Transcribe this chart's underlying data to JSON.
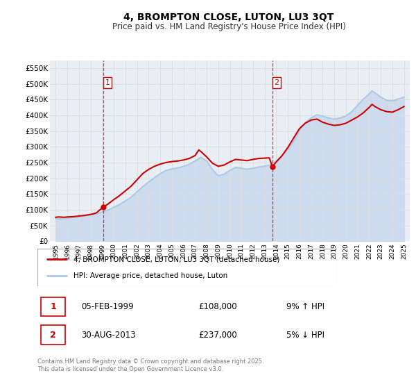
{
  "title": "4, BROMPTON CLOSE, LUTON, LU3 3QT",
  "subtitle": "Price paid vs. HM Land Registry's House Price Index (HPI)",
  "hpi_label": "HPI: Average price, detached house, Luton",
  "property_label": "4, BROMPTON CLOSE, LUTON, LU3 3QT (detached house)",
  "footer": "Contains HM Land Registry data © Crown copyright and database right 2025.\nThis data is licensed under the Open Government Licence v3.0.",
  "annotation1": {
    "label": "1",
    "date": "05-FEB-1999",
    "price": "£108,000",
    "pct": "9% ↑ HPI",
    "x_year": 1999.1,
    "y_val": 108000
  },
  "annotation2": {
    "label": "2",
    "date": "30-AUG-2013",
    "price": "£237,000",
    "pct": "5% ↓ HPI",
    "x_year": 2013.66,
    "y_val": 237000
  },
  "vline1_x": 1999.1,
  "vline2_x": 2013.66,
  "property_color": "#cc0000",
  "hpi_color": "#aac8e8",
  "grid_color": "#dddddd",
  "plot_bg_color": "#e8eef4",
  "ylim": [
    0,
    575000
  ],
  "xlim": [
    1994.5,
    2025.5
  ],
  "yticks": [
    0,
    50000,
    100000,
    150000,
    200000,
    250000,
    300000,
    350000,
    400000,
    450000,
    500000,
    550000
  ],
  "ytick_labels": [
    "£0",
    "£50K",
    "£100K",
    "£150K",
    "£200K",
    "£250K",
    "£300K",
    "£350K",
    "£400K",
    "£450K",
    "£500K",
    "£550K"
  ],
  "property_data": [
    [
      1995.0,
      76000
    ],
    [
      1995.25,
      77000
    ],
    [
      1995.5,
      76500
    ],
    [
      1995.75,
      76000
    ],
    [
      1996.0,
      77000
    ],
    [
      1996.25,
      77500
    ],
    [
      1996.5,
      78000
    ],
    [
      1996.75,
      79000
    ],
    [
      1997.0,
      80000
    ],
    [
      1997.25,
      81000
    ],
    [
      1997.5,
      82000
    ],
    [
      1997.75,
      83500
    ],
    [
      1998.0,
      85000
    ],
    [
      1998.25,
      87000
    ],
    [
      1998.5,
      90000
    ],
    [
      1998.75,
      98000
    ],
    [
      1999.1,
      108000
    ],
    [
      1999.5,
      118000
    ],
    [
      1999.75,
      125000
    ],
    [
      2000.0,
      132000
    ],
    [
      2000.5,
      145000
    ],
    [
      2001.0,
      160000
    ],
    [
      2001.5,
      175000
    ],
    [
      2002.0,
      195000
    ],
    [
      2002.5,
      215000
    ],
    [
      2003.0,
      228000
    ],
    [
      2003.5,
      238000
    ],
    [
      2004.0,
      245000
    ],
    [
      2004.5,
      250000
    ],
    [
      2005.0,
      253000
    ],
    [
      2005.5,
      255000
    ],
    [
      2006.0,
      258000
    ],
    [
      2006.5,
      263000
    ],
    [
      2007.0,
      272000
    ],
    [
      2007.33,
      290000
    ],
    [
      2007.5,
      285000
    ],
    [
      2008.0,
      268000
    ],
    [
      2008.5,
      248000
    ],
    [
      2009.0,
      238000
    ],
    [
      2009.5,
      242000
    ],
    [
      2010.0,
      252000
    ],
    [
      2010.5,
      260000
    ],
    [
      2011.0,
      258000
    ],
    [
      2011.5,
      256000
    ],
    [
      2012.0,
      260000
    ],
    [
      2012.5,
      263000
    ],
    [
      2013.0,
      264000
    ],
    [
      2013.4,
      265000
    ],
    [
      2013.66,
      237000
    ],
    [
      2014.0,
      252000
    ],
    [
      2014.5,
      272000
    ],
    [
      2015.0,
      298000
    ],
    [
      2015.5,
      328000
    ],
    [
      2016.0,
      358000
    ],
    [
      2016.5,
      375000
    ],
    [
      2017.0,
      385000
    ],
    [
      2017.5,
      388000
    ],
    [
      2018.0,
      378000
    ],
    [
      2018.5,
      372000
    ],
    [
      2019.0,
      368000
    ],
    [
      2019.5,
      370000
    ],
    [
      2020.0,
      375000
    ],
    [
      2020.5,
      385000
    ],
    [
      2021.0,
      395000
    ],
    [
      2021.5,
      408000
    ],
    [
      2022.0,
      425000
    ],
    [
      2022.25,
      435000
    ],
    [
      2022.5,
      428000
    ],
    [
      2023.0,
      418000
    ],
    [
      2023.5,
      412000
    ],
    [
      2024.0,
      410000
    ],
    [
      2024.5,
      418000
    ],
    [
      2025.0,
      428000
    ]
  ],
  "hpi_data": [
    [
      1995.0,
      72000
    ],
    [
      1995.25,
      71000
    ],
    [
      1995.5,
      71500
    ],
    [
      1995.75,
      72000
    ],
    [
      1996.0,
      73000
    ],
    [
      1996.25,
      74000
    ],
    [
      1996.5,
      75000
    ],
    [
      1996.75,
      76500
    ],
    [
      1997.0,
      78000
    ],
    [
      1997.25,
      79500
    ],
    [
      1997.5,
      81000
    ],
    [
      1997.75,
      82500
    ],
    [
      1998.0,
      84000
    ],
    [
      1998.25,
      86000
    ],
    [
      1998.5,
      88000
    ],
    [
      1998.75,
      90000
    ],
    [
      1999.0,
      93000
    ],
    [
      1999.5,
      99000
    ],
    [
      1999.75,
      103000
    ],
    [
      2000.0,
      108000
    ],
    [
      2000.5,
      117000
    ],
    [
      2001.0,
      128000
    ],
    [
      2001.5,
      140000
    ],
    [
      2002.0,
      157000
    ],
    [
      2002.5,
      174000
    ],
    [
      2003.0,
      188000
    ],
    [
      2003.5,
      202000
    ],
    [
      2004.0,
      215000
    ],
    [
      2004.5,
      225000
    ],
    [
      2005.0,
      230000
    ],
    [
      2005.5,
      233000
    ],
    [
      2006.0,
      238000
    ],
    [
      2006.5,
      245000
    ],
    [
      2007.0,
      255000
    ],
    [
      2007.5,
      267000
    ],
    [
      2008.0,
      255000
    ],
    [
      2008.5,
      228000
    ],
    [
      2009.0,
      208000
    ],
    [
      2009.5,
      213000
    ],
    [
      2010.0,
      225000
    ],
    [
      2010.5,
      235000
    ],
    [
      2011.0,
      232000
    ],
    [
      2011.5,
      229000
    ],
    [
      2012.0,
      232000
    ],
    [
      2012.5,
      236000
    ],
    [
      2013.0,
      239000
    ],
    [
      2013.5,
      243000
    ],
    [
      2013.66,
      246000
    ],
    [
      2014.0,
      255000
    ],
    [
      2014.5,
      272000
    ],
    [
      2015.0,
      292000
    ],
    [
      2015.5,
      318000
    ],
    [
      2016.0,
      352000
    ],
    [
      2016.5,
      378000
    ],
    [
      2017.0,
      392000
    ],
    [
      2017.5,
      402000
    ],
    [
      2018.0,
      398000
    ],
    [
      2018.5,
      392000
    ],
    [
      2019.0,
      388000
    ],
    [
      2019.5,
      392000
    ],
    [
      2020.0,
      398000
    ],
    [
      2020.5,
      412000
    ],
    [
      2021.0,
      432000
    ],
    [
      2021.5,
      452000
    ],
    [
      2022.0,
      468000
    ],
    [
      2022.25,
      478000
    ],
    [
      2022.5,
      472000
    ],
    [
      2023.0,
      458000
    ],
    [
      2023.5,
      448000
    ],
    [
      2024.0,
      446000
    ],
    [
      2024.5,
      452000
    ],
    [
      2025.0,
      458000
    ]
  ]
}
